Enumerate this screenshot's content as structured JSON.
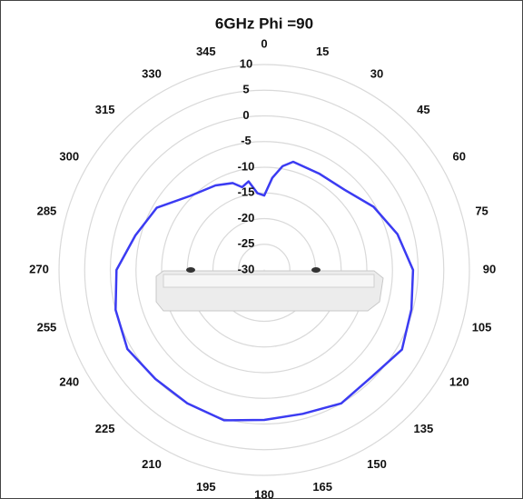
{
  "chart_data": {
    "type": "polar",
    "title": "6GHz Phi =90",
    "thetaticks": [
      0,
      15,
      30,
      45,
      60,
      75,
      90,
      105,
      120,
      135,
      150,
      165,
      180,
      195,
      210,
      225,
      240,
      255,
      270,
      285,
      300,
      315,
      330,
      345
    ],
    "rlim": [
      -30,
      10
    ],
    "rticks": [
      -30,
      -25,
      -20,
      -15,
      -10,
      -5,
      0,
      5,
      10
    ],
    "color": "#3b3bf2",
    "theta": [
      0,
      5,
      10,
      15,
      30,
      45,
      60,
      75,
      90,
      105,
      120,
      135,
      150,
      165,
      180,
      195,
      210,
      225,
      240,
      255,
      270,
      285,
      300,
      315,
      330,
      340,
      345,
      350,
      355
    ],
    "values": [
      -15.5,
      -12,
      -9.5,
      -8.2,
      -8.4,
      -7.9,
      -5.4,
      -3.1,
      -1,
      -0.3,
      1,
      -0.5,
      0,
      -1,
      -0.8,
      0.3,
      0,
      0,
      0.8,
      0,
      -1.2,
      -4,
      -5.8,
      -9.6,
      -11,
      -12,
      -13.3,
      -12.5,
      -15
    ]
  }
}
